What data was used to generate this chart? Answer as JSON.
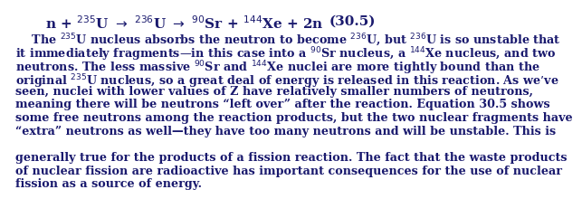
{
  "bg_color": "#ffffff",
  "text_color": "#1a1a6e",
  "eq_number": "(30.5)",
  "eq_text": "n + $^{235}$U $\\rightarrow$ $^{236}$U $\\rightarrow$ $^{90}$Sr + $^{144}$Xe + 2n",
  "font_size_eq": 11.0,
  "font_size_body": 9.2,
  "fig_width": 5.32,
  "fig_height": 2.52,
  "lines": [
    "    The $^{235}$U nucleus absorbs the neutron to become $^{236}$U, but $^{236}$U is so unstable that",
    "it immediately fragments—in this case into a $^{90}$Sr nucleus, a $^{144}$Xe nucleus, and two",
    "neutrons. The less massive $^{90}$Sr and $^{144}$Xe nuclei are more tightly bound than the",
    "original $^{235}$U nucleus, so a great deal of energy is released in this reaction. As we’ve",
    "seen, nuclei with lower values of Z have relatively smaller numbers of neutrons,",
    "meaning there will be neutrons “left over” after the reaction. Equation 30.5 shows",
    "some free neutrons among the reaction products, but the two nuclear fragments have",
    "“extra” neutrons as well—they have too many neutrons and will be unstable. This is",
    "",
    "generally true for the products of a fission reaction. The fact that the waste products",
    "of nuclear fission are radioactive has important consequences for the use of nuclear",
    "fission as a source of energy."
  ]
}
